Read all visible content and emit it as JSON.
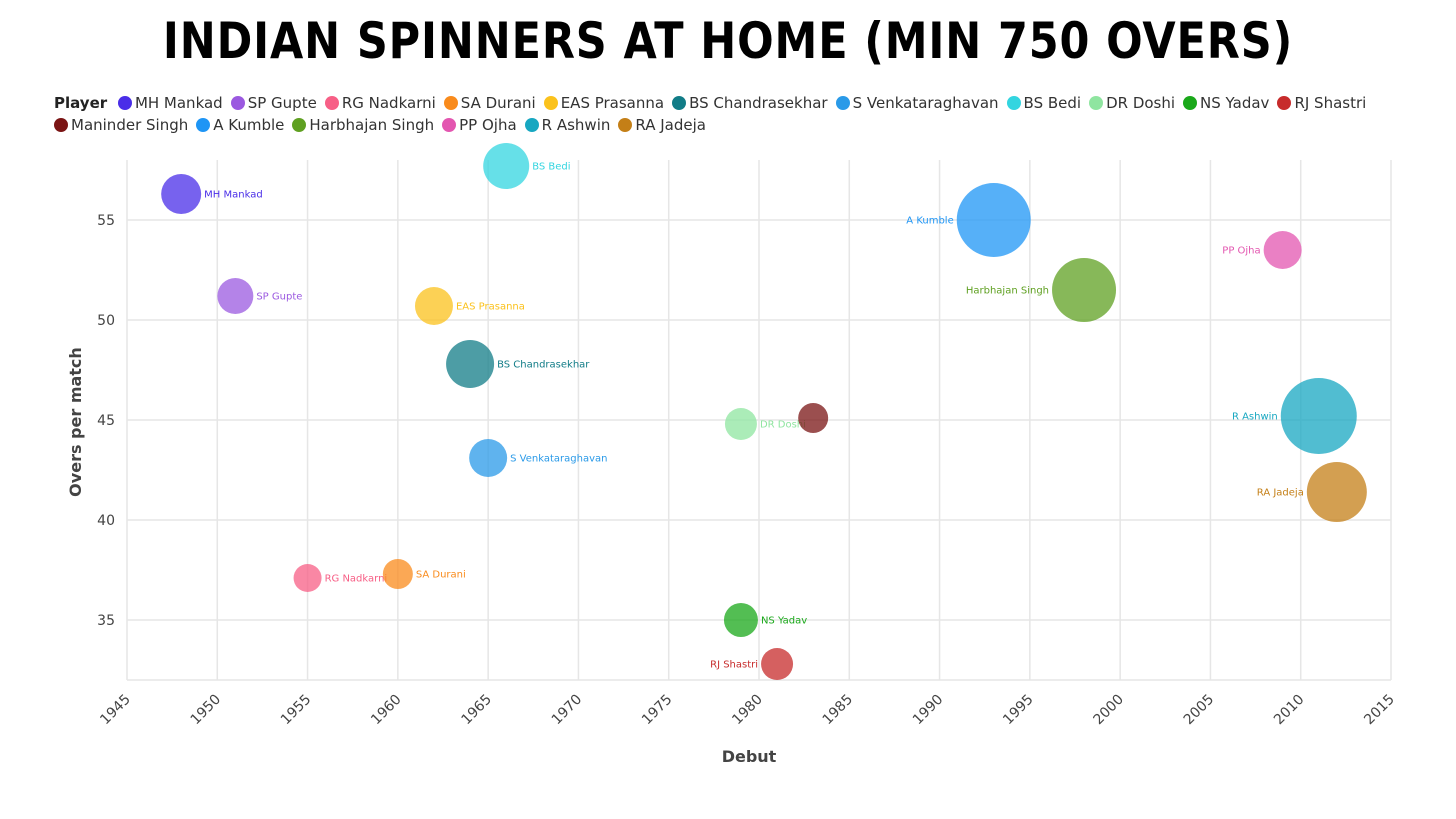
{
  "chart_data": {
    "type": "scatter",
    "title": "INDIAN SPINNERS AT HOME (MIN 750 OVERS)",
    "legend_title": "Player",
    "xlabel": "Debut",
    "ylabel": "Overs per match",
    "xlim": [
      1945,
      2015
    ],
    "ylim": [
      32,
      58
    ],
    "xticks": [
      "1945",
      "1950",
      "1955",
      "1960",
      "1965",
      "1970",
      "1975",
      "1980",
      "1985",
      "1990",
      "1995",
      "2000",
      "2005",
      "2010",
      "2015"
    ],
    "yticks": [
      "35",
      "40",
      "45",
      "50",
      "55"
    ],
    "grid": true,
    "legend_position": "top",
    "series": [
      {
        "name": "MH Mankad",
        "color": "#4a2ee8",
        "x": 1948,
        "y": 56.3,
        "size": 20,
        "label_side": "right"
      },
      {
        "name": "SP Gupte",
        "color": "#9b59e0",
        "x": 1951,
        "y": 51.2,
        "size": 18,
        "label_side": "right"
      },
      {
        "name": "RG Nadkarni",
        "color": "#f75f86",
        "x": 1955,
        "y": 37.1,
        "size": 14,
        "label_side": "right"
      },
      {
        "name": "SA Durani",
        "color": "#f98b1c",
        "x": 1960,
        "y": 37.3,
        "size": 15,
        "label_side": "right"
      },
      {
        "name": "EAS Prasanna",
        "color": "#fbc21c",
        "x": 1962,
        "y": 50.7,
        "size": 19,
        "label_side": "right"
      },
      {
        "name": "BS Chandrasekhar",
        "color": "#117c87",
        "x": 1964,
        "y": 47.8,
        "size": 24,
        "label_side": "right"
      },
      {
        "name": "S Venkataraghavan",
        "color": "#2a9ae8",
        "x": 1965,
        "y": 43.1,
        "size": 19,
        "label_side": "right"
      },
      {
        "name": "BS Bedi",
        "color": "#33d5e0",
        "x": 1966,
        "y": 57.7,
        "size": 23,
        "label_side": "right"
      },
      {
        "name": "DR Doshi",
        "color": "#8fe5a0",
        "x": 1979,
        "y": 44.8,
        "size": 16,
        "label_side": "right"
      },
      {
        "name": "NS Yadav",
        "color": "#1aa81a",
        "x": 1979,
        "y": 35.0,
        "size": 17,
        "label_side": "right"
      },
      {
        "name": "RJ Shastri",
        "color": "#c72b2b",
        "x": 1981,
        "y": 32.8,
        "size": 16,
        "label_side": "left"
      },
      {
        "name": "Maninder Singh",
        "color": "#7a1414",
        "x": 1983,
        "y": 45.1,
        "size": 15,
        "label_side": "none"
      },
      {
        "name": "A Kumble",
        "color": "#1e95f5",
        "x": 1993,
        "y": 55.0,
        "size": 37,
        "label_side": "left"
      },
      {
        "name": "Harbhajan Singh",
        "color": "#5fa021",
        "x": 1998,
        "y": 51.5,
        "size": 32,
        "label_side": "left"
      },
      {
        "name": "PP Ojha",
        "color": "#e356b0",
        "x": 2009,
        "y": 53.5,
        "size": 19,
        "label_side": "left"
      },
      {
        "name": "R Ashwin",
        "color": "#17a7c1",
        "x": 2011,
        "y": 45.2,
        "size": 38,
        "label_side": "left"
      },
      {
        "name": "RA Jadeja",
        "color": "#c47f17",
        "x": 2012,
        "y": 41.4,
        "size": 30,
        "label_side": "left"
      }
    ]
  }
}
